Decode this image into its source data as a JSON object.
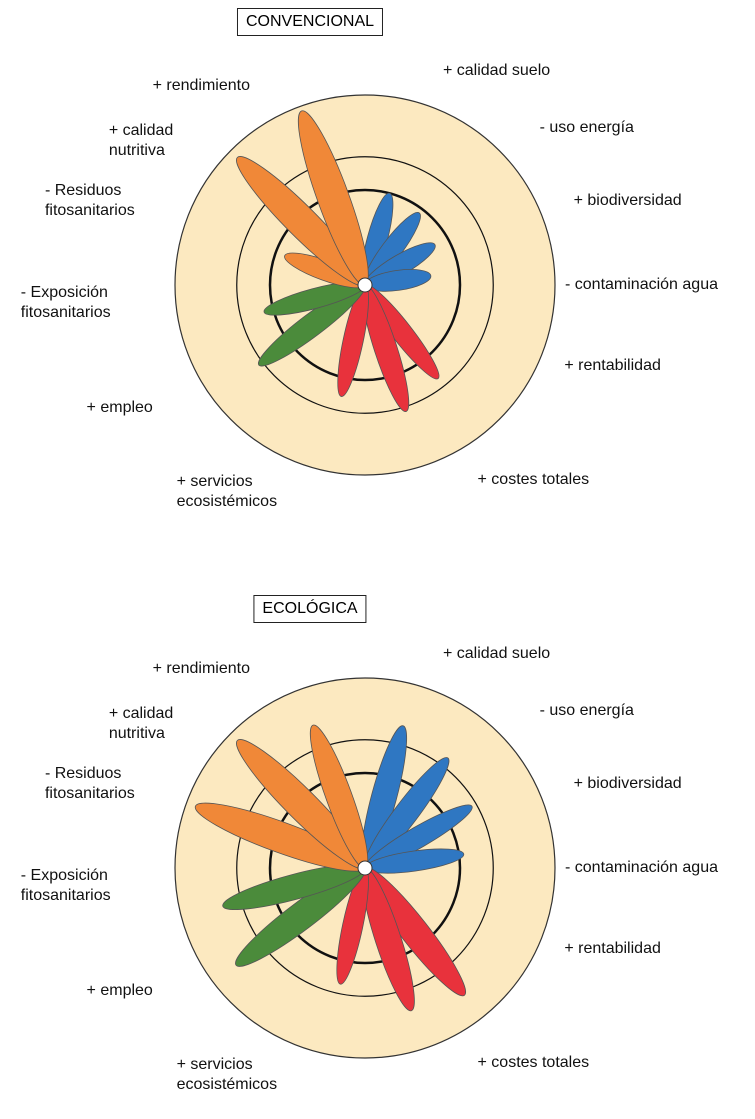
{
  "chart_data": [
    {
      "type": "petal",
      "title": "CONVENCIONAL",
      "categories": [
        "+ calidad suelo",
        "- uso energía",
        "+ biodiversidad",
        "- contaminación agua",
        "+ rentabilidad",
        "+ costes totales",
        "+ servicios\necosistémicos",
        "+ empleo",
        "- Exposición\nfitosanitarios",
        "- Residuos\nfitosanitarios",
        "+ calidad\nnutritiva",
        "+ rendimiento"
      ],
      "values": [
        100,
        95,
        85,
        70,
        125,
        140,
        120,
        140,
        110,
        90,
        190,
        195
      ],
      "colors": [
        "#2f77c2",
        "#2f77c2",
        "#2f77c2",
        "#2f77c2",
        "#e8323c",
        "#e8323c",
        "#e8323c",
        "#4b8b3b",
        "#4b8b3b",
        "#f08838",
        "#f08838",
        "#f08838"
      ],
      "ylim": [
        0,
        200
      ],
      "yticks": [
        100,
        135
      ],
      "background": "#fce9c0"
    },
    {
      "type": "petal",
      "title": "ECOLÓGICA",
      "categories": [
        "+ calidad suelo",
        "- uso energía",
        "+ biodiversidad",
        "- contaminación agua",
        "+ rentabilidad",
        "+ costes totales",
        "+ servicios\necosistémicos",
        "+ empleo",
        "- Exposición\nfitosanitarios",
        "- Residuos\nfitosanitarios",
        "+ calidad\nnutritiva",
        "+ rendimiento"
      ],
      "values": [
        155,
        145,
        130,
        105,
        170,
        158,
        125,
        170,
        155,
        190,
        190,
        160
      ],
      "colors": [
        "#2f77c2",
        "#2f77c2",
        "#2f77c2",
        "#2f77c2",
        "#e8323c",
        "#e8323c",
        "#e8323c",
        "#4b8b3b",
        "#4b8b3b",
        "#f08838",
        "#f08838",
        "#f08838"
      ],
      "ylim": [
        0,
        200
      ],
      "yticks": [
        100,
        135
      ],
      "background": "#fce9c0"
    }
  ]
}
